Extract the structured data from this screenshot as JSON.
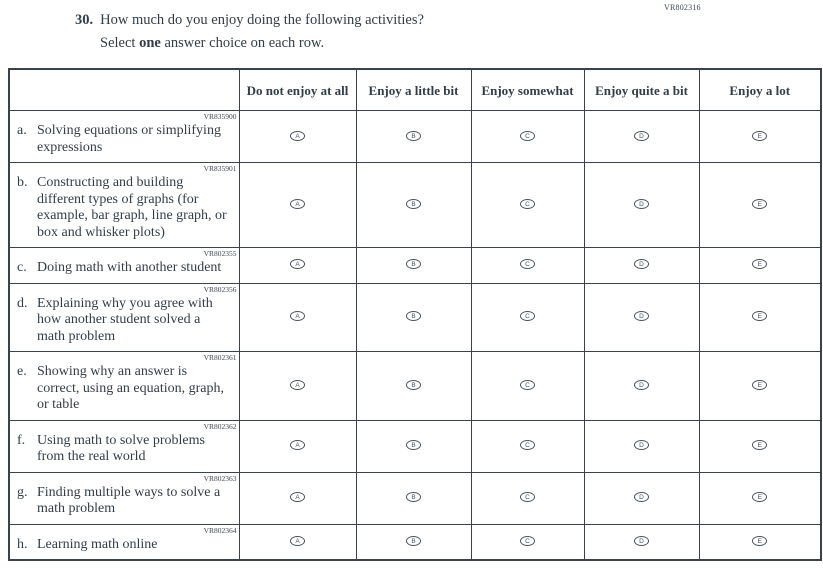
{
  "page": {
    "form_code": "VR802316"
  },
  "question": {
    "number": "30.",
    "text": "How much do you enjoy doing the following activities?",
    "instruction": {
      "prefix": "Select ",
      "bold": "one",
      "suffix": " answer choice on each row."
    }
  },
  "table": {
    "columns": [
      "Do not enjoy at all",
      "Enjoy a little bit",
      "Enjoy somewhat",
      "Enjoy quite a bit",
      "Enjoy a lot"
    ],
    "options": [
      "A",
      "B",
      "C",
      "D",
      "E"
    ],
    "rows": [
      {
        "code": "VR835900",
        "letter": "a.",
        "label": "Solving equations or simplifying expressions"
      },
      {
        "code": "VR835901",
        "letter": "b.",
        "label": "Constructing and building different types of graphs (for example, bar graph, line graph, or box and whisker plots)"
      },
      {
        "code": "VR802355",
        "letter": "c.",
        "label": "Doing math with another student"
      },
      {
        "code": "VR802356",
        "letter": "d.",
        "label": "Explaining why you agree with how another student solved a math problem"
      },
      {
        "code": "VR802361",
        "letter": "e.",
        "label": "Showing why an answer is correct, using an equation, graph, or table"
      },
      {
        "code": "VR802362",
        "letter": "f.",
        "label": "Using math to solve problems from the real world"
      },
      {
        "code": "VR802363",
        "letter": "g.",
        "label": "Finding multiple ways to solve a math problem"
      },
      {
        "code": "VR802364",
        "letter": "h.",
        "label": "Learning math online"
      }
    ]
  },
  "colors": {
    "text": "#323d4a",
    "border": "#3a434d"
  }
}
